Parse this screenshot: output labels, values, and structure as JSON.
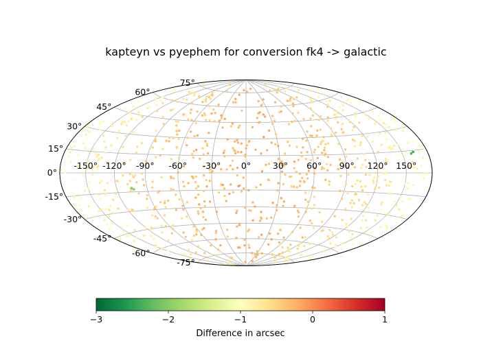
{
  "chart_data": {
    "type": "scatter",
    "projection": "hammer",
    "title": "kapteyn vs pyephem for conversion fk4 -> galactic",
    "longitude_tick_labels": [
      "-150°",
      "-120°",
      "-90°",
      "-60°",
      "-30°",
      "0°",
      "30°",
      "60°",
      "90°",
      "120°",
      "150°"
    ],
    "longitude_tick_values": [
      -150,
      -120,
      -90,
      -60,
      -30,
      0,
      30,
      60,
      90,
      120,
      150
    ],
    "latitude_tick_labels": [
      "75°",
      "60°",
      "45°",
      "30°",
      "15°",
      "0°",
      "-15°",
      "-30°",
      "-45°",
      "-60°",
      "-75°"
    ],
    "latitude_tick_values": [
      75,
      60,
      45,
      30,
      15,
      0,
      -15,
      -30,
      -45,
      -60,
      -75
    ],
    "xlim": [
      -180,
      180
    ],
    "ylim": [
      -90,
      90
    ],
    "grid": true,
    "point_size": "small",
    "point_count": 900,
    "color_trend": "difference is about -0.2 to 0 arcsec near the center, falling toward about -1 arcsec at the far left and right edges of the map",
    "outliers": [
      {
        "x": 163,
        "y": 14,
        "value": -2.4
      },
      {
        "x": 160,
        "y": 13,
        "value": -2.3
      },
      {
        "x": -105,
        "y": -12,
        "value": -2.0
      },
      {
        "x": -103,
        "y": -13,
        "value": -1.9
      }
    ],
    "colorbar": {
      "colormap": "RdYlGn_r",
      "min": -3,
      "max": 1,
      "tick_values": [
        -3,
        -2,
        -1,
        0,
        1
      ],
      "tick_labels": [
        "−3",
        "−2",
        "−1",
        "0",
        "1"
      ],
      "label": "Difference in arcsec"
    }
  }
}
